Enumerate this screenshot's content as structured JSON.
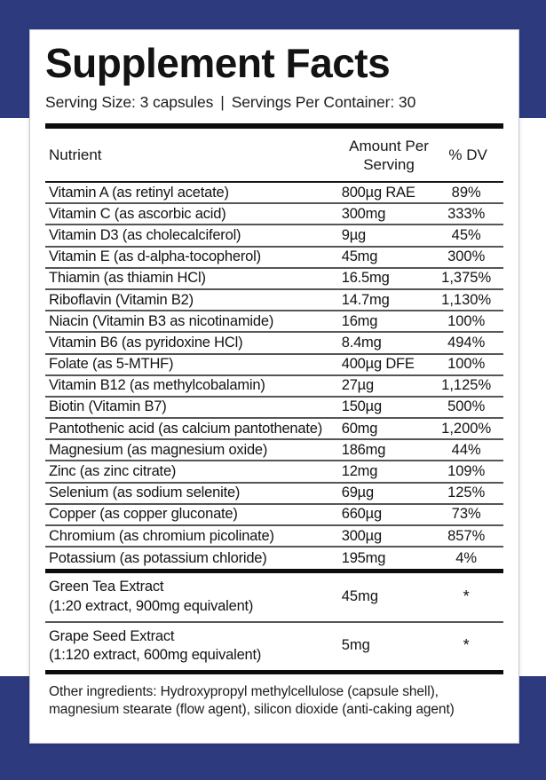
{
  "colors": {
    "band_navy": "#2d3a7d",
    "card_background": "#ffffff",
    "rule_black": "#0c0c0c",
    "rule_gray": "#565656"
  },
  "label": {
    "title": "Supplement Facts",
    "serving_size": "Serving Size: 3 capsules",
    "serving_separator": "|",
    "servings_per_container": "Servings Per Container: 30"
  },
  "table": {
    "headers": {
      "nutrient": "Nutrient",
      "amount": "Amount Per Serving",
      "dv": "% DV"
    },
    "rows": [
      {
        "nutrient": "Vitamin A (as retinyl acetate)",
        "amount": "800µg RAE",
        "dv": "89%"
      },
      {
        "nutrient": "Vitamin C (as ascorbic acid)",
        "amount": "300mg",
        "dv": "333%"
      },
      {
        "nutrient": "Vitamin D3 (as cholecalciferol)",
        "amount": "9µg",
        "dv": "45%"
      },
      {
        "nutrient": "Vitamin E (as d-alpha-tocopherol)",
        "amount": "45mg",
        "dv": "300%"
      },
      {
        "nutrient": "Thiamin (as thiamin HCl)",
        "amount": "16.5mg",
        "dv": "1,375%"
      },
      {
        "nutrient": "Riboflavin (Vitamin B2)",
        "amount": "14.7mg",
        "dv": "1,130%"
      },
      {
        "nutrient": "Niacin (Vitamin B3 as nicotinamide)",
        "amount": "16mg",
        "dv": "100%"
      },
      {
        "nutrient": "Vitamin B6 (as pyridoxine HCl)",
        "amount": "8.4mg",
        "dv": "494%"
      },
      {
        "nutrient": "Folate (as 5-MTHF)",
        "amount": "400µg DFE",
        "dv": "100%"
      },
      {
        "nutrient": "Vitamin B12 (as methylcobalamin)",
        "amount": "27µg",
        "dv": "1,125%"
      },
      {
        "nutrient": "Biotin (Vitamin B7)",
        "amount": "150µg",
        "dv": "500%"
      },
      {
        "nutrient": "Pantothenic acid (as calcium pantothenate)",
        "amount": "60mg",
        "dv": "1,200%"
      },
      {
        "nutrient": "Magnesium (as magnesium oxide)",
        "amount": "186mg",
        "dv": "44%"
      },
      {
        "nutrient": "Zinc (as zinc citrate)",
        "amount": "12mg",
        "dv": "109%"
      },
      {
        "nutrient": "Selenium (as sodium selenite)",
        "amount": "69µg",
        "dv": "125%"
      },
      {
        "nutrient": "Copper (as copper gluconate)",
        "amount": "660µg",
        "dv": "73%"
      },
      {
        "nutrient": "Chromium (as chromium picolinate)",
        "amount": "300µg",
        "dv": "857%"
      },
      {
        "nutrient": "Potassium (as potassium chloride)",
        "amount": "195mg",
        "dv": "4%"
      }
    ],
    "extracts": [
      {
        "name": "Green Tea Extract",
        "detail": "(1:20 extract, 900mg equivalent)",
        "amount": "45mg",
        "dv": "*"
      },
      {
        "name": "Grape Seed Extract",
        "detail": "(1:120 extract, 600mg equivalent)",
        "amount": "5mg",
        "dv": "*"
      }
    ],
    "other_ingredients": "Other ingredients:  Hydroxypropyl methylcellulose (capsule shell), magnesium stearate (flow agent), silicon dioxide (anti-caking agent)"
  }
}
